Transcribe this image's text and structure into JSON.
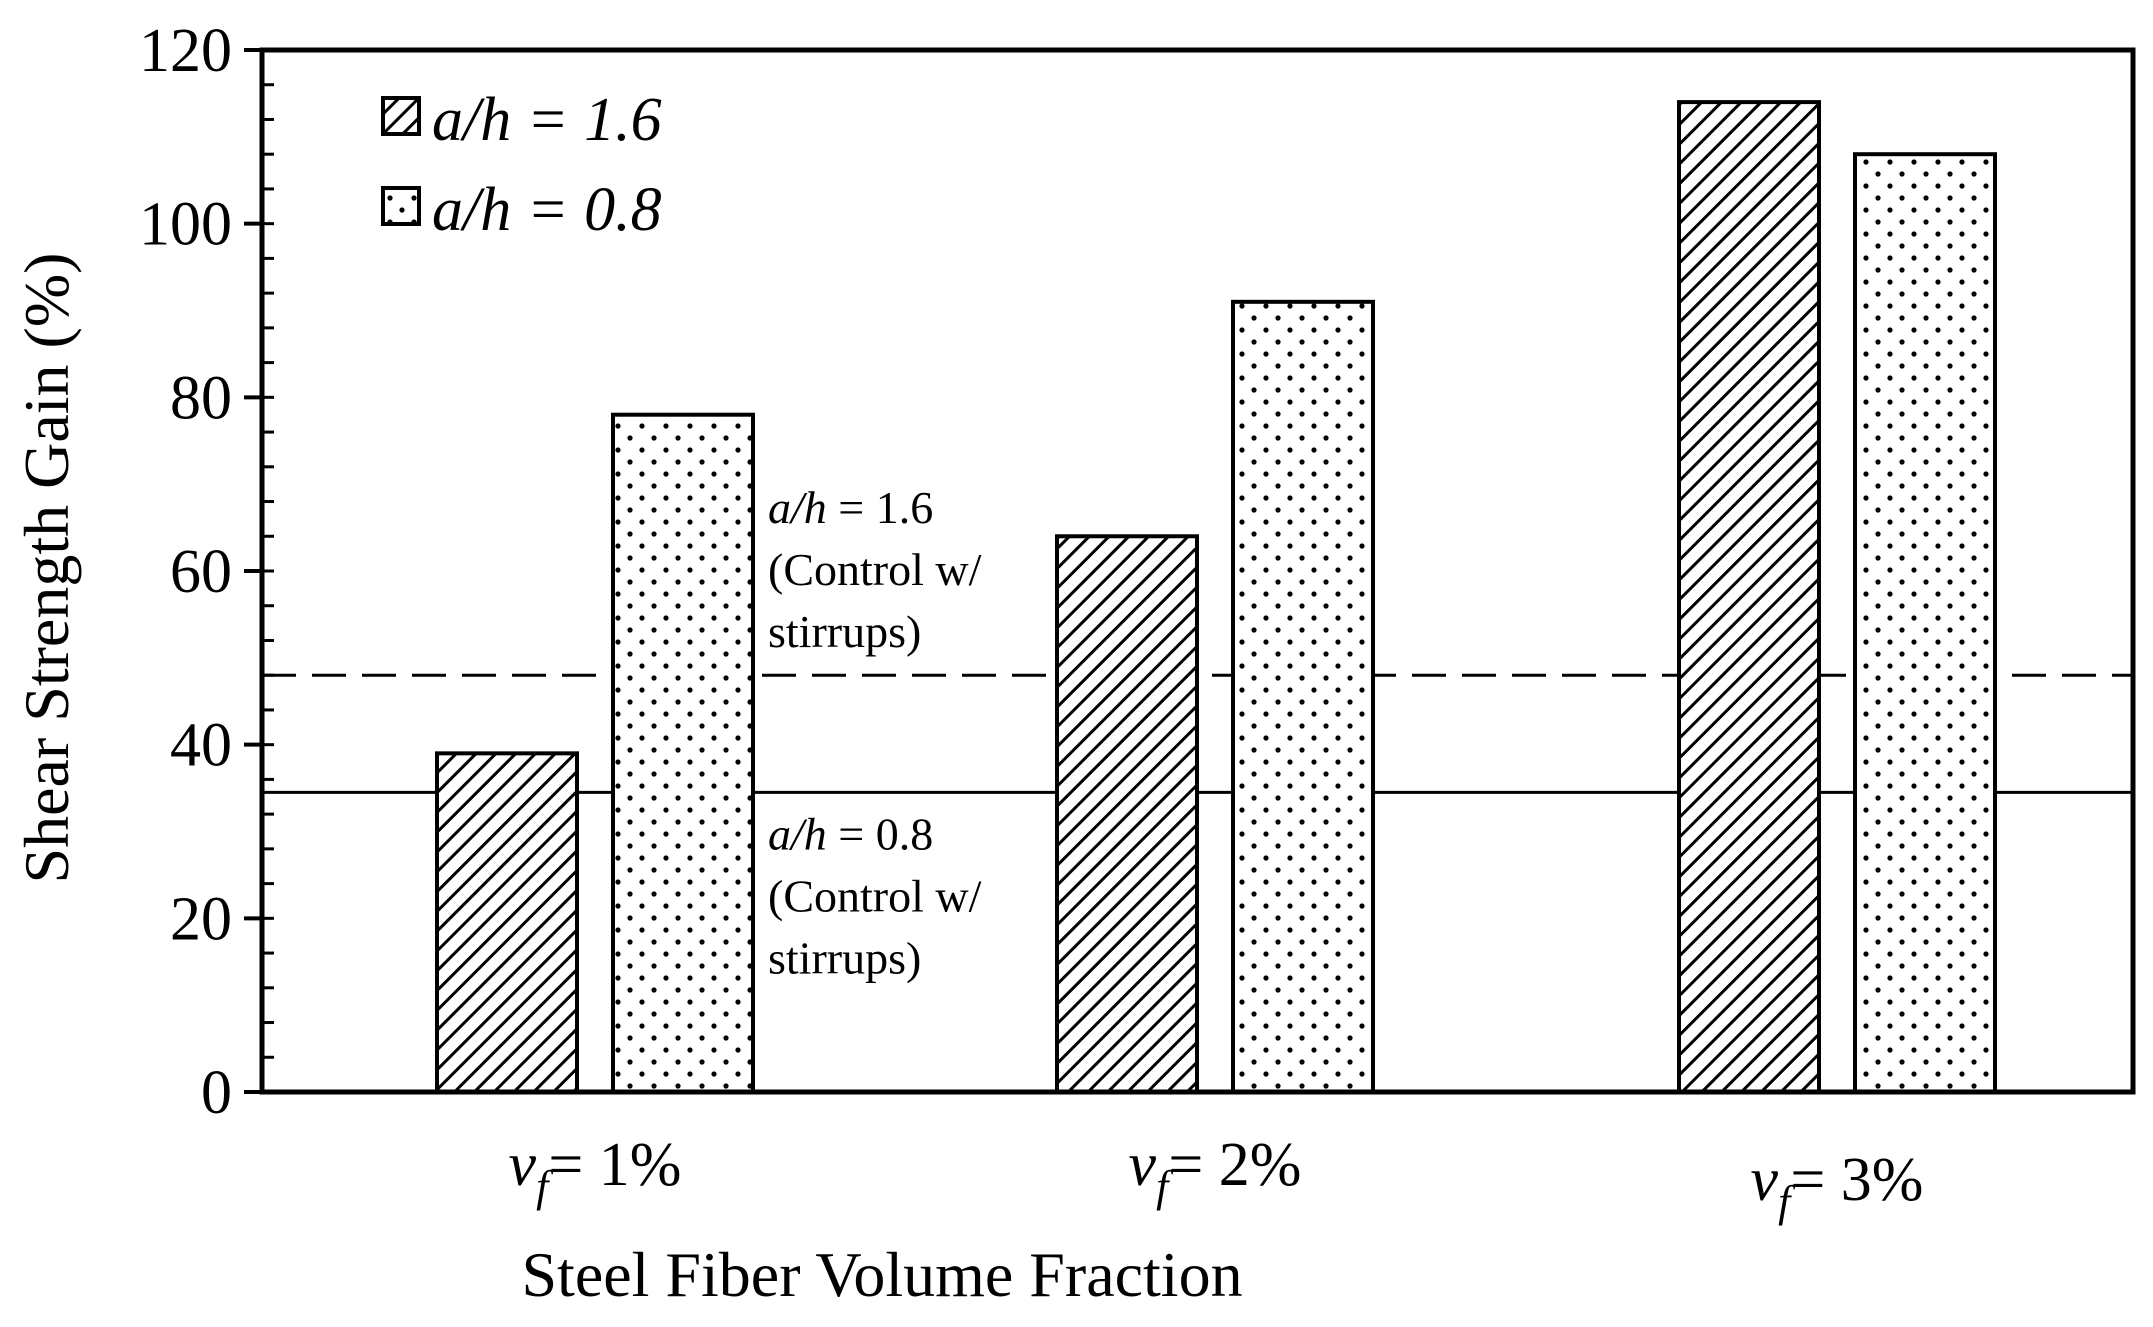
{
  "chart_data": {
    "type": "bar",
    "title": "",
    "xlabel": "Steel Fiber Volume Fraction",
    "ylabel": "Shear Strength Gain (%)",
    "ylim": [
      0,
      120
    ],
    "yticks": [
      "0",
      "20",
      "40",
      "60",
      "80",
      "100",
      "120"
    ],
    "categories": [
      {
        "var": "v",
        "sub": "f",
        "rest": "= 1%"
      },
      {
        "var": "v",
        "sub": "f",
        "rest": "= 2%"
      },
      {
        "var": "v",
        "sub": "f",
        "rest": "= 3%"
      }
    ],
    "series": [
      {
        "name": "a/h = 1.6",
        "pattern": "diagonal-hatch",
        "values": [
          39,
          64,
          114
        ]
      },
      {
        "name": "a/h = 0.8",
        "pattern": "dots",
        "values": [
          78,
          91,
          108
        ]
      }
    ],
    "reference_lines": [
      {
        "value": 48,
        "style": "dashed",
        "label_italic": "a/h",
        "label_rest": " = 1.6",
        "label_line2": "(Control w/",
        "label_line3": "stirrups)"
      },
      {
        "value": 34.5,
        "style": "solid",
        "label_italic": "a/h",
        "label_rest": " = 0.8",
        "label_line2": "(Control w/",
        "label_line3": "stirrups)"
      }
    ],
    "legend_position": "top-left",
    "grid": false
  },
  "colors": {
    "ink": "#000000",
    "background": "#ffffff"
  }
}
